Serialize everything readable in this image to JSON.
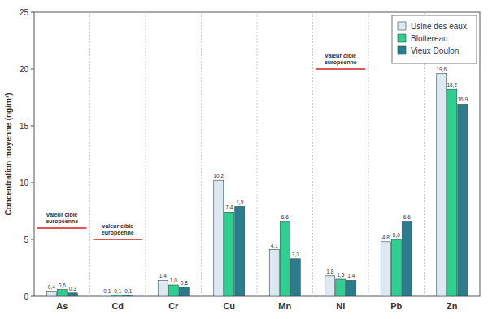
{
  "chart_data": {
    "type": "bar",
    "y_label": "Concentration moyenne (ng/m³)",
    "categories": [
      "As",
      "Cd",
      "Cr",
      "Cu",
      "Mn",
      "Ni",
      "Pb",
      "Zn"
    ],
    "series": [
      {
        "name": "Usine des eaux",
        "color": "#dde9f0",
        "values": [
          0.4,
          0.1,
          1.4,
          10.2,
          4.1,
          1.8,
          4.8,
          19.6
        ],
        "value_labels": [
          "0,4",
          "0,1",
          "1,4",
          "10,2",
          "4,1",
          "1,8",
          "4,8",
          "19,6"
        ]
      },
      {
        "name": "Blottereau",
        "color": "#2fcf8f",
        "values": [
          0.6,
          0.1,
          1.0,
          7.4,
          6.6,
          1.5,
          5.0,
          18.2
        ],
        "value_labels": [
          "0,6",
          "0,1",
          "1,0",
          "7,4",
          "6,6",
          "1,5",
          "5,0",
          "18,2"
        ]
      },
      {
        "name": "Vieux Doulon",
        "color": "#2b7d8e",
        "values": [
          0.3,
          0.1,
          0.8,
          7.9,
          3.3,
          1.4,
          6.6,
          16.9
        ],
        "value_labels": [
          "0,3",
          "0,1",
          "0,8",
          "7,9",
          "3,3",
          "1,4",
          "6,6",
          "16,9"
        ]
      }
    ],
    "annotations": [
      {
        "text": "valeur cible européenne",
        "value": 6,
        "category": "As"
      },
      {
        "text": "valeur cible européenne",
        "value": 5,
        "category": "Cd"
      },
      {
        "text": "valeur cible européenne",
        "value": 20,
        "category": "Ni"
      }
    ],
    "ylim": [
      0,
      25
    ],
    "yticks": [
      0,
      5,
      10,
      15,
      20,
      25
    ],
    "grid": true,
    "legend": "upper right",
    "data_labels": true
  }
}
